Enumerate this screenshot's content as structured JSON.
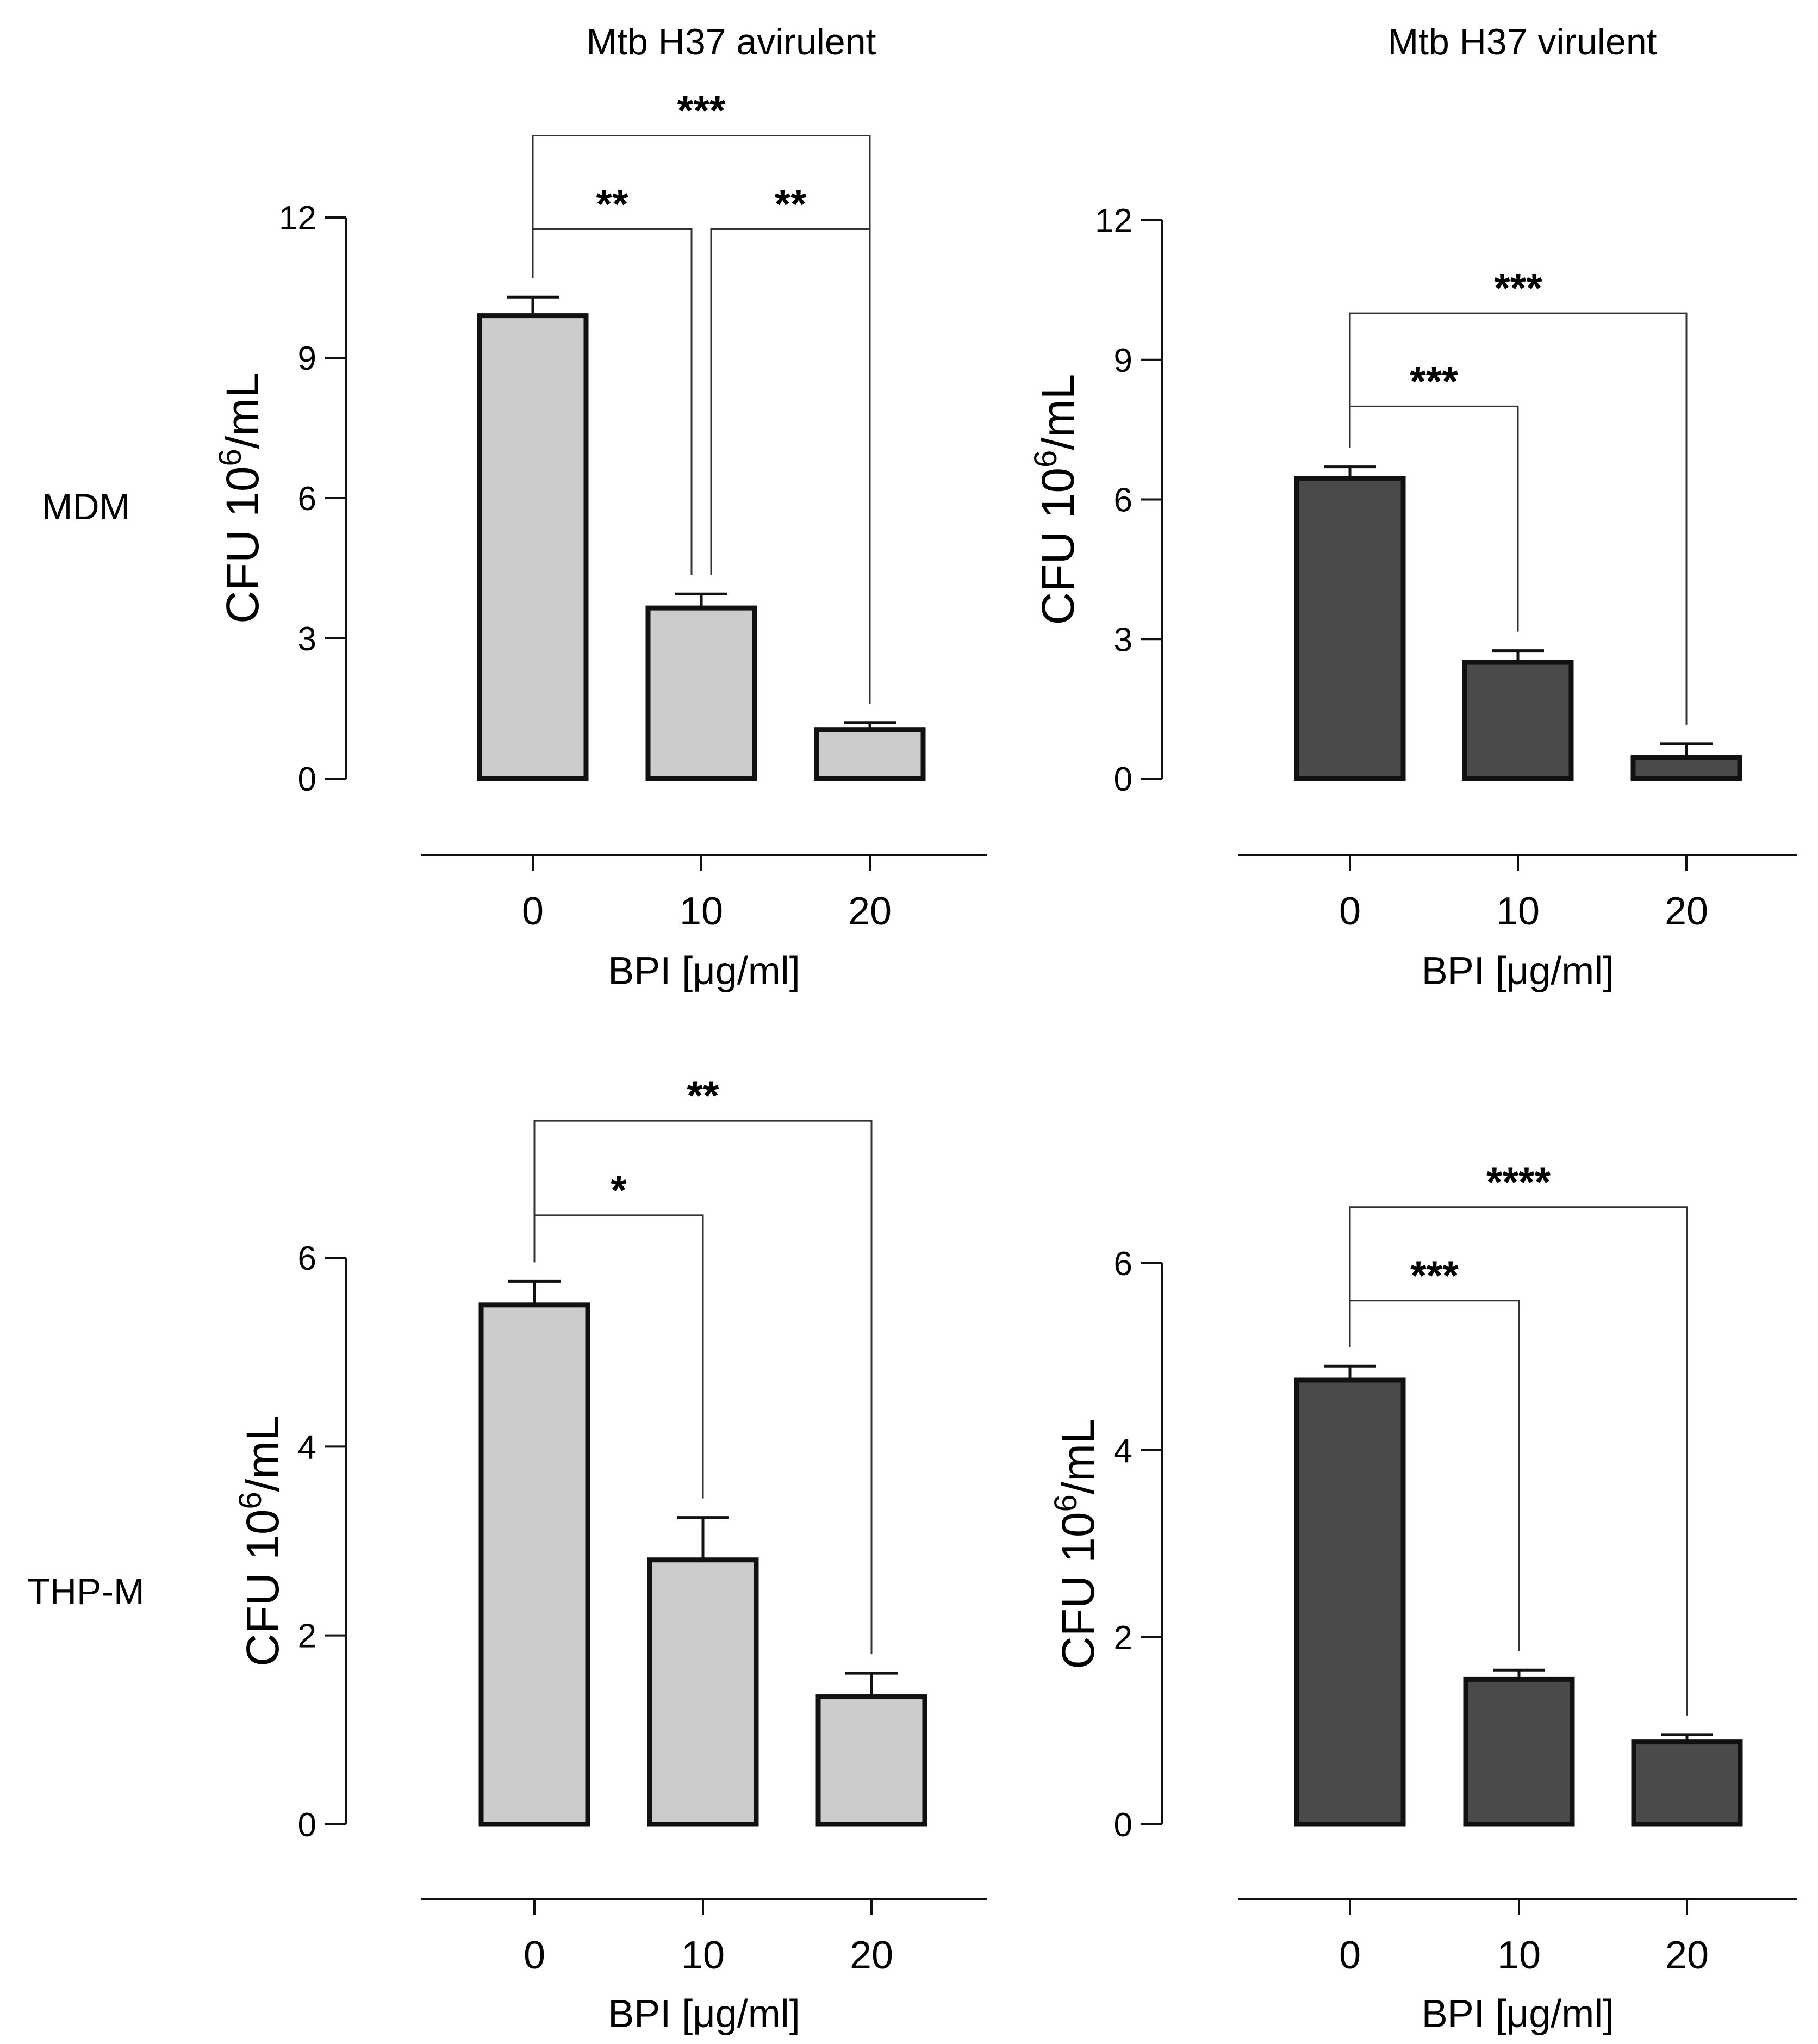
{
  "column_titles": [
    "Mtb H37 avirulent",
    "Mtb H37 virulent"
  ],
  "row_labels": [
    "MDM",
    "THP-M"
  ],
  "colors": {
    "avirulent_fill": "#cccccc",
    "virulent_fill": "#4a4a4a",
    "stroke": "#111111"
  },
  "chart_data": [
    {
      "type": "bar",
      "title": "Mtb H37 avirulent",
      "row": "MDM",
      "categories": [
        "0",
        "10",
        "20"
      ],
      "values": [
        9.9,
        3.65,
        1.05
      ],
      "errors": [
        0.4,
        0.3,
        0.15
      ],
      "xlabel": "BPI [μg/ml]",
      "ylabel_main": "CFU 10",
      "ylabel_sup": "6",
      "ylabel_tail": "/mL",
      "ylim": [
        0,
        12
      ],
      "yticks": [
        "0",
        "3",
        "6",
        "9",
        "12"
      ],
      "fill": "#cccccc",
      "significance": [
        {
          "from": 0,
          "to": 1,
          "label": "**",
          "level": 11.75
        },
        {
          "from": 1,
          "to": 2,
          "label": "**",
          "level": 11.75
        },
        {
          "from": 0,
          "to": 2,
          "label": "***",
          "level": 13.75
        }
      ]
    },
    {
      "type": "bar",
      "title": "Mtb H37 virulent",
      "row": "MDM",
      "categories": [
        "0",
        "10",
        "20"
      ],
      "values": [
        6.45,
        2.5,
        0.45
      ],
      "errors": [
        0.25,
        0.25,
        0.3
      ],
      "xlabel": "BPI [μg/ml]",
      "ylabel_main": "CFU 10",
      "ylabel_sup": "6",
      "ylabel_tail": "/mL",
      "ylim": [
        0,
        12
      ],
      "yticks": [
        "0",
        "3",
        "6",
        "9",
        "12"
      ],
      "fill": "#4a4a4a",
      "significance": [
        {
          "from": 0,
          "to": 1,
          "label": "***",
          "level": 8.0
        },
        {
          "from": 0,
          "to": 2,
          "label": "***",
          "level": 10.0
        }
      ]
    },
    {
      "type": "bar",
      "title": "Mtb H37 avirulent",
      "row": "THP-M",
      "categories": [
        "0",
        "10",
        "20"
      ],
      "values": [
        5.5,
        2.8,
        1.35
      ],
      "errors": [
        0.25,
        0.45,
        0.25
      ],
      "xlabel": "BPI [μg/ml]",
      "ylabel_main": "CFU 10",
      "ylabel_sup": "6",
      "ylabel_tail": "/mL",
      "ylim": [
        0,
        6
      ],
      "yticks": [
        "0",
        "2",
        "4",
        "6"
      ],
      "fill": "#cccccc",
      "significance": [
        {
          "from": 0,
          "to": 1,
          "label": "*",
          "level": 6.45
        },
        {
          "from": 0,
          "to": 2,
          "label": "**",
          "level": 7.45
        }
      ]
    },
    {
      "type": "bar",
      "title": "Mtb H37 virulent",
      "row": "THP-M",
      "categories": [
        "0",
        "10",
        "20"
      ],
      "values": [
        4.75,
        1.55,
        0.88
      ],
      "errors": [
        0.15,
        0.1,
        0.08
      ],
      "xlabel": "BPI [μg/ml]",
      "ylabel_main": "CFU 10",
      "ylabel_sup": "6",
      "ylabel_tail": "/mL",
      "ylim": [
        0,
        6
      ],
      "yticks": [
        "0",
        "2",
        "4",
        "6"
      ],
      "fill": "#4a4a4a",
      "significance": [
        {
          "from": 0,
          "to": 1,
          "label": "***",
          "level": 5.6
        },
        {
          "from": 0,
          "to": 2,
          "label": "****",
          "level": 6.6
        }
      ]
    }
  ]
}
